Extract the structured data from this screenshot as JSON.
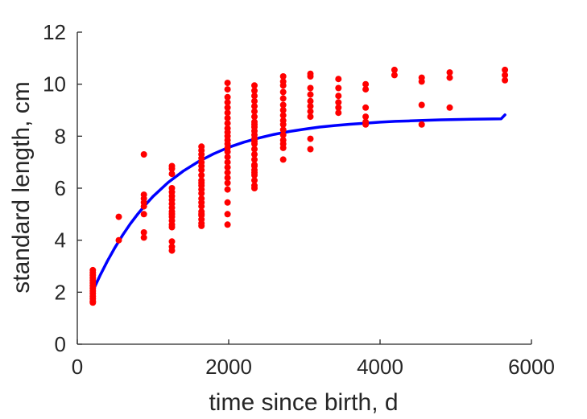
{
  "chart_data": {
    "type": "scatter",
    "xlabel": "time since birth, d",
    "ylabel": "standard length, cm",
    "xlim": [
      0,
      6000
    ],
    "ylim": [
      0,
      12
    ],
    "xticks": [
      0,
      2000,
      4000,
      6000
    ],
    "yticks": [
      0,
      2,
      4,
      6,
      8,
      10,
      12
    ],
    "grid": false,
    "legend": "none",
    "colors": {
      "points": "#ff0000",
      "fit": "#0000ff",
      "axis": "#262626"
    },
    "series": [
      {
        "kind": "points",
        "x": [
          205,
          205,
          205,
          205,
          205,
          205,
          205,
          205,
          205,
          205,
          205,
          205,
          205,
          205,
          548,
          548,
          880,
          880,
          880,
          880,
          880,
          880,
          880,
          880,
          1250,
          1250,
          1250,
          1250,
          1250,
          1250,
          1250,
          1250,
          1250,
          1250,
          1250,
          1250,
          1250,
          1250,
          1250,
          1250,
          1250,
          1250,
          1640,
          1640,
          1640,
          1640,
          1640,
          1640,
          1640,
          1640,
          1640,
          1640,
          1640,
          1640,
          1640,
          1640,
          1640,
          1640,
          1640,
          1640,
          1640,
          1640,
          1640,
          1640,
          1985,
          1985,
          1985,
          1985,
          1985,
          1985,
          1985,
          1985,
          1985,
          1985,
          1985,
          1985,
          1985,
          1985,
          1985,
          1985,
          1985,
          1985,
          1985,
          1985,
          1985,
          1985,
          1985,
          1985,
          1985,
          2340,
          2340,
          2340,
          2340,
          2340,
          2340,
          2340,
          2340,
          2340,
          2340,
          2340,
          2340,
          2340,
          2340,
          2340,
          2340,
          2340,
          2340,
          2340,
          2340,
          2340,
          2340,
          2340,
          2340,
          2340,
          2340,
          2720,
          2720,
          2720,
          2720,
          2720,
          2720,
          2720,
          2720,
          2720,
          2720,
          2720,
          2720,
          2720,
          2720,
          2720,
          2720,
          3080,
          3080,
          3080,
          3080,
          3080,
          3080,
          3080,
          3080,
          3080,
          3080,
          3450,
          3450,
          3450,
          3450,
          3450,
          3450,
          3810,
          3810,
          3810,
          3810,
          3810,
          3810,
          4190,
          4190,
          4550,
          4550,
          4550,
          4550,
          4920,
          4920,
          4920,
          5650,
          5650,
          5650
        ],
        "y": [
          2.85,
          2.75,
          2.65,
          2.55,
          2.45,
          2.35,
          2.25,
          2.15,
          2.05,
          1.95,
          1.85,
          1.75,
          1.65,
          1.6,
          4.9,
          4.0,
          7.3,
          5.75,
          5.6,
          5.45,
          5.3,
          5.0,
          4.3,
          4.1,
          6.85,
          6.75,
          6.55,
          6.0,
          5.85,
          5.7,
          5.55,
          5.4,
          5.25,
          5.1,
          5.0,
          4.9,
          4.75,
          4.6,
          4.5,
          3.95,
          3.75,
          3.6,
          7.6,
          7.45,
          7.3,
          7.15,
          7.0,
          6.85,
          6.7,
          6.5,
          6.3,
          6.1,
          5.95,
          5.8,
          5.6,
          5.45,
          5.3,
          5.1,
          4.95,
          4.8,
          4.65,
          4.55,
          6.2,
          5.0,
          10.05,
          9.8,
          9.5,
          9.3,
          9.1,
          8.9,
          8.7,
          8.5,
          8.3,
          8.15,
          8.0,
          7.85,
          7.7,
          7.55,
          7.4,
          7.2,
          7.0,
          6.8,
          6.6,
          6.4,
          6.2,
          5.95,
          5.45,
          5.0,
          4.6,
          9.95,
          9.75,
          9.55,
          9.35,
          9.15,
          8.95,
          8.75,
          8.55,
          8.35,
          8.2,
          8.05,
          7.9,
          7.7,
          7.5,
          7.3,
          7.1,
          6.9,
          6.7,
          6.5,
          6.3,
          6.1,
          6.0,
          8.45,
          7.8,
          6.85,
          6.6,
          10.3,
          10.1,
          9.95,
          9.7,
          9.45,
          9.2,
          9.0,
          8.8,
          8.6,
          8.45,
          8.25,
          8.05,
          7.85,
          7.55,
          7.1,
          7.7,
          10.4,
          10.3,
          9.85,
          9.6,
          9.35,
          9.15,
          8.95,
          8.75,
          7.9,
          7.5,
          10.2,
          9.85,
          9.55,
          9.3,
          9.1,
          8.9,
          10.0,
          9.8,
          9.1,
          8.75,
          8.55,
          8.45,
          10.55,
          10.35,
          10.25,
          10.1,
          9.2,
          8.45,
          10.45,
          10.25,
          9.1,
          10.55,
          10.35,
          10.15
        ]
      },
      {
        "kind": "fit",
        "x": [
          205,
          300,
          400,
          500,
          600,
          700,
          800,
          900,
          1000,
          1200,
          1400,
          1600,
          1800,
          2000,
          2200,
          2400,
          2600,
          2800,
          3000,
          3200,
          3400,
          3600,
          3800,
          4000,
          4200,
          4400,
          4600,
          4800,
          5000,
          5200,
          5400,
          5600,
          5650
        ],
        "y": [
          2.05,
          2.64,
          3.21,
          3.73,
          4.2,
          4.63,
          5.01,
          5.36,
          5.68,
          6.22,
          6.66,
          7.02,
          7.32,
          7.57,
          7.77,
          7.93,
          8.07,
          8.18,
          8.27,
          8.35,
          8.41,
          8.46,
          8.5,
          8.54,
          8.57,
          8.59,
          8.61,
          8.63,
          8.64,
          8.65,
          8.66,
          8.67,
          8.82
        ]
      }
    ]
  }
}
